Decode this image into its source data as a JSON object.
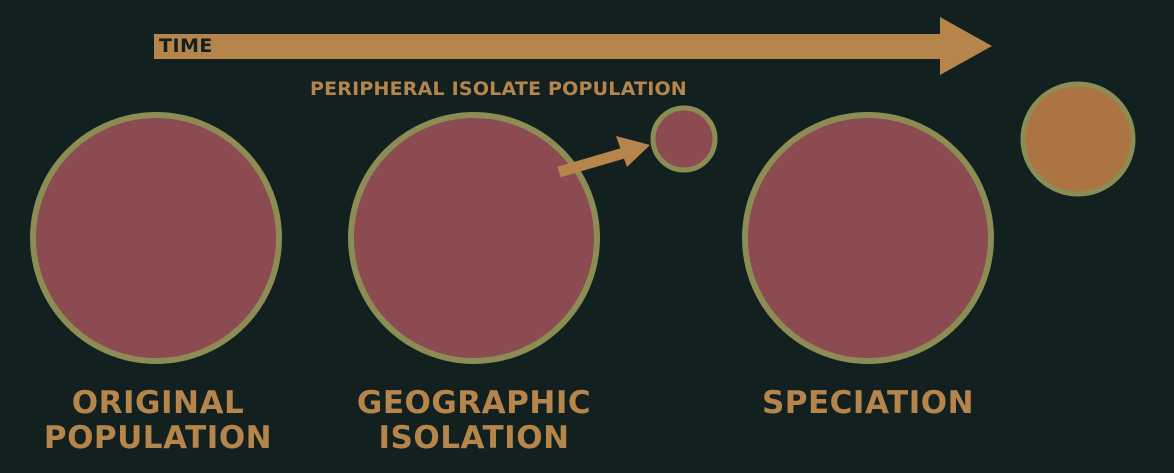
{
  "timeline": {
    "label": "TIME",
    "arrow_color": "#b5854b"
  },
  "annotation": {
    "peripheral_isolate": "PERIPHERAL ISOLATE POPULATION"
  },
  "stages": [
    {
      "line1": "ORIGINAL",
      "line2": "POPULATION"
    },
    {
      "line1": "GEOGRAPHIC",
      "line2": "ISOLATION"
    },
    {
      "line1": "SPECIATION",
      "line2": ""
    }
  ],
  "colors": {
    "background": "#132020",
    "population_fill": "#8b4b50",
    "population_outline": "#8c8d55",
    "new_species_fill": "#ad7443",
    "new_species_outline": "#8c8d55",
    "text": "#b5854b"
  }
}
